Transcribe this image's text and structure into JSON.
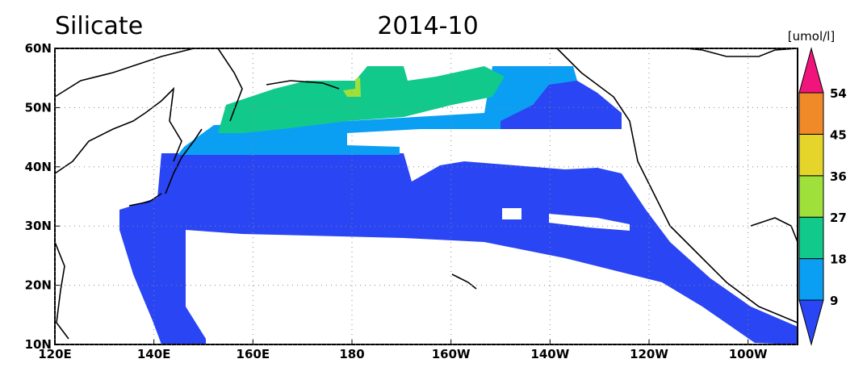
{
  "title": "Silicate",
  "date": "2014-10",
  "unit": "[umol/l]",
  "map": {
    "xlim": [
      120,
      270
    ],
    "ylim": [
      10,
      60
    ],
    "xticks": [
      {
        "value": 120,
        "label": "120E"
      },
      {
        "value": 140,
        "label": "140E"
      },
      {
        "value": 160,
        "label": "160E"
      },
      180,
      {
        "value": 200,
        "label": "160W"
      },
      {
        "value": 220,
        "label": "140W"
      },
      {
        "value": 240,
        "label": "120W"
      },
      {
        "value": 260,
        "label": "100W"
      }
    ],
    "yticks": [
      {
        "value": 10,
        "label": "10N"
      },
      {
        "value": 20,
        "label": "20N"
      },
      {
        "value": 30,
        "label": "30N"
      },
      {
        "value": 40,
        "label": "40N"
      },
      {
        "value": 50,
        "label": "50N"
      },
      {
        "value": 60,
        "label": "60N"
      }
    ],
    "grid": true
  },
  "colorbar": {
    "levels": [
      9,
      18,
      27,
      36,
      45,
      54
    ],
    "colors": [
      "#2a45f3",
      "#0b9ff4",
      "#12c98c",
      "#9fe03b",
      "#e5d52b",
      "#f08a28",
      "#f0157c"
    ]
  }
}
